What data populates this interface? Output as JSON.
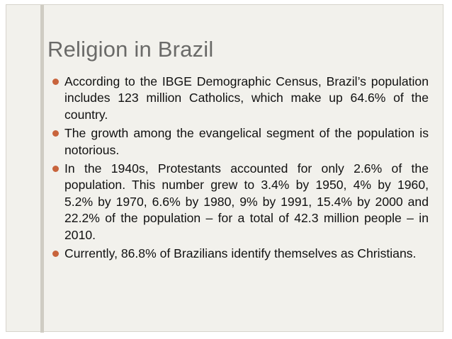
{
  "slide": {
    "title": "Religion in Brazil",
    "bullets": [
      "According to the IBGE Demographic Census, Brazil’s population includes 123 million Catholics, which make up 64.6% of the country.",
      "The growth among the evangelical segment of the population is notorious.",
      "In the 1940s, Protestants accounted for only 2.6% of the population. This number grew to 3.4% by 1950, 4% by 1960, 5.2% by 1970, 6.6% by 1980, 9% by 1991, 15.4% by 2000 and 22.2% of the population – for a total of 42.3 million people – in 2010.",
      "Currently, 86.8% of Brazilians identify themselves as Christians."
    ]
  },
  "colors": {
    "background": "#f2f1ec",
    "title": "#6a6a68",
    "bullet_marker": "#c8643c",
    "text": "#111111",
    "accent_bar": "#cfccc3"
  },
  "icons": {
    "bullet_marker": "bullet-dot-icon"
  }
}
